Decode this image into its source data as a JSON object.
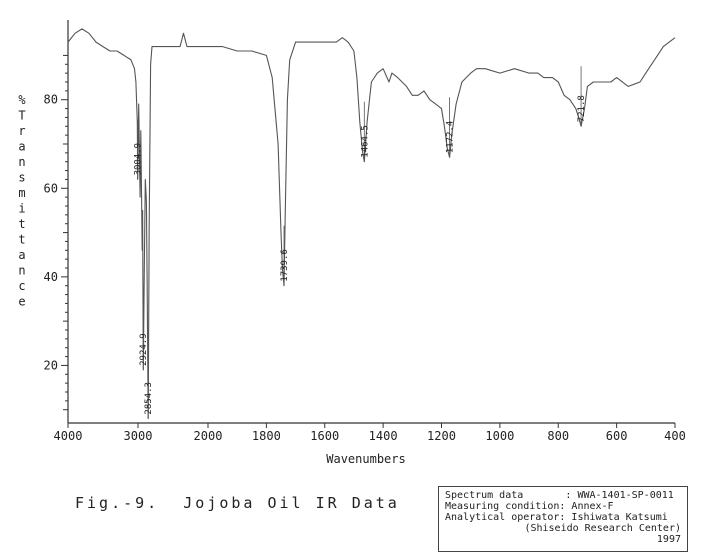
{
  "chart_data": {
    "type": "line",
    "xlabel": "Wavenumbers",
    "ylabel": "% Transmittance",
    "x_ticks": [
      4000,
      3000,
      2000,
      1800,
      1600,
      1400,
      1200,
      1000,
      800,
      600,
      400
    ],
    "y_ticks": [
      20,
      40,
      60,
      80
    ],
    "ylim": [
      7,
      98
    ],
    "grid": false,
    "series": [
      {
        "x": [
          4000,
          3900,
          3800,
          3700,
          3600,
          3500,
          3400,
          3300,
          3200,
          3100,
          3050,
          3030,
          3010,
          3004,
          2990,
          2970,
          2960,
          2940,
          2935,
          2924,
          2910,
          2895,
          2880,
          2870,
          2854,
          2840,
          2820,
          2800,
          2700,
          2600,
          2500,
          2400,
          2350,
          2300,
          2250,
          2200,
          2100,
          2000,
          1950,
          1900,
          1850,
          1800,
          1780,
          1760,
          1750,
          1745,
          1739.6,
          1735,
          1728,
          1720,
          1700,
          1680,
          1650,
          1620,
          1600,
          1580,
          1560,
          1540,
          1520,
          1500,
          1490,
          1480,
          1470,
          1464.5,
          1455,
          1440,
          1420,
          1400,
          1380,
          1370,
          1350,
          1320,
          1300,
          1280,
          1260,
          1240,
          1220,
          1200,
          1190,
          1180,
          1172.4,
          1165,
          1150,
          1130,
          1100,
          1080,
          1050,
          1000,
          950,
          900,
          870,
          850,
          820,
          800,
          780,
          760,
          740,
          730,
          721.8,
          710,
          700,
          680,
          660,
          640,
          620,
          600,
          560,
          520,
          500,
          480,
          460,
          440,
          420,
          400
        ],
        "y": [
          93,
          95,
          96,
          95,
          93,
          92,
          91,
          91,
          90,
          89,
          87,
          84,
          75,
          62,
          79,
          58,
          73,
          46,
          55,
          19,
          42,
          62,
          57,
          40,
          8,
          52,
          88,
          92,
          92,
          92,
          92,
          92,
          95,
          92,
          92,
          92,
          92,
          92,
          92,
          91,
          91,
          90,
          85,
          70,
          50,
          42,
          38,
          55,
          80,
          89,
          93,
          93,
          93,
          93,
          93,
          93,
          93,
          94,
          93,
          91,
          85,
          75,
          68,
          66,
          75,
          84,
          86,
          87,
          84,
          86,
          85,
          83,
          81,
          81,
          82,
          80,
          79,
          78,
          74,
          69,
          67,
          72,
          79,
          84,
          86,
          87,
          87,
          86,
          87,
          86,
          86,
          85,
          85,
          84,
          81,
          80,
          78,
          76,
          74,
          78,
          83,
          84,
          84,
          84,
          84,
          85,
          83,
          84,
          86,
          88,
          90,
          92,
          93,
          94
        ]
      }
    ],
    "peaks": [
      {
        "x": 3004.9,
        "label": "3004.9",
        "y": 62
      },
      {
        "x": 2924.9,
        "label": "2924.9",
        "y": 19
      },
      {
        "x": 2854.3,
        "label": "2854.3",
        "y": 8
      },
      {
        "x": 1739.6,
        "label": "1739.6",
        "y": 38
      },
      {
        "x": 1464.5,
        "label": "1464.5",
        "y": 66
      },
      {
        "x": 1172.4,
        "label": "1172.4",
        "y": 67
      },
      {
        "x": 721.8,
        "label": "721.8",
        "y": 74
      }
    ]
  },
  "caption": "Fig.-9.  Jojoba Oil IR Data",
  "info": {
    "row1": "Spectrum data       : WWA-1401-SP-0011",
    "row2": "Measuring condition: Annex-F",
    "row3": "Analytical operator: Ishiwata Katsumi",
    "row4": "(Shiseido Research Center)",
    "row5": "1997"
  },
  "colors": {
    "line": "#555555",
    "axis": "#333333"
  }
}
